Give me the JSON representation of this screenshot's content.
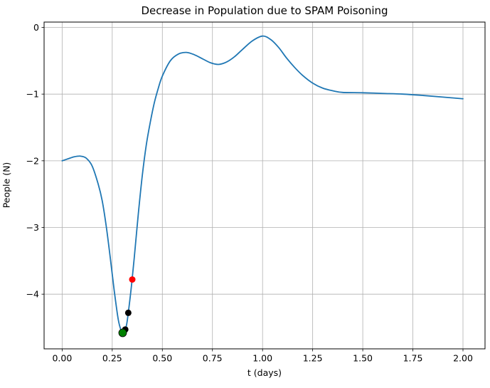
{
  "title": "Decrease in Population due to SPAM Poisoning",
  "colors": {
    "background": "#ffffff",
    "line": "#1f77b4",
    "grid": "#b0b0b0",
    "spine": "#000000",
    "tick": "#000000",
    "red_marker": "#ff0000",
    "black_marker": "#000000",
    "green_marker": "#008000"
  },
  "chart_data": {
    "type": "line",
    "title": "Decrease in Population due to SPAM Poisoning",
    "xlabel": "t (days)",
    "ylabel": "People (N)",
    "xlim": [
      -0.09,
      2.11
    ],
    "ylim": [
      -4.82,
      0.08
    ],
    "grid": true,
    "legend": false,
    "xticks": [
      0.0,
      0.25,
      0.5,
      0.75,
      1.0,
      1.25,
      1.5,
      1.75,
      2.0
    ],
    "xtick_labels": [
      "0.00",
      "0.25",
      "0.50",
      "0.75",
      "1.00",
      "1.25",
      "1.50",
      "1.75",
      "2.00"
    ],
    "yticks": [
      0,
      -1,
      -2,
      -3,
      -4
    ],
    "ytick_labels": [
      "0",
      "−1",
      "−2",
      "−3",
      "−4"
    ],
    "series": [
      {
        "name": "population-curve",
        "color": "#1f77b4",
        "line_width": 1.8,
        "x": [
          0.0,
          0.03,
          0.06,
          0.09,
          0.12,
          0.15,
          0.18,
          0.2,
          0.22,
          0.24,
          0.26,
          0.28,
          0.295,
          0.305,
          0.32,
          0.33,
          0.345,
          0.36,
          0.38,
          0.4,
          0.42,
          0.44,
          0.46,
          0.48,
          0.5,
          0.54,
          0.58,
          0.62,
          0.66,
          0.7,
          0.74,
          0.78,
          0.82,
          0.86,
          0.9,
          0.95,
          1.0,
          1.04,
          1.08,
          1.12,
          1.16,
          1.2,
          1.25,
          1.3,
          1.35,
          1.4,
          1.5,
          1.6,
          1.7,
          1.8,
          1.9,
          2.0
        ],
        "y": [
          -2.0,
          -1.97,
          -1.94,
          -1.93,
          -1.96,
          -2.08,
          -2.35,
          -2.6,
          -2.98,
          -3.45,
          -3.95,
          -4.38,
          -4.55,
          -4.58,
          -4.48,
          -4.28,
          -3.9,
          -3.45,
          -2.8,
          -2.22,
          -1.76,
          -1.42,
          -1.13,
          -0.91,
          -0.73,
          -0.5,
          -0.4,
          -0.375,
          -0.41,
          -0.47,
          -0.53,
          -0.555,
          -0.52,
          -0.44,
          -0.33,
          -0.2,
          -0.13,
          -0.18,
          -0.3,
          -0.46,
          -0.6,
          -0.72,
          -0.835,
          -0.91,
          -0.95,
          -0.975,
          -0.98,
          -0.99,
          -1.0,
          -1.02,
          -1.045,
          -1.07
        ]
      }
    ],
    "markers": [
      {
        "name": "red-point",
        "x": 0.35,
        "y": -3.78,
        "color": "#ff0000",
        "radius": 4.5,
        "edge": "none",
        "edge_width": 0
      },
      {
        "name": "black-point-upper",
        "x": 0.33,
        "y": -4.28,
        "color": "#000000",
        "radius": 4.5,
        "edge": "none",
        "edge_width": 0
      },
      {
        "name": "black-point-lower",
        "x": 0.315,
        "y": -4.53,
        "color": "#000000",
        "radius": 4.5,
        "edge": "none",
        "edge_width": 0
      },
      {
        "name": "green-point",
        "x": 0.302,
        "y": -4.58,
        "color": "#008000",
        "radius": 5.5,
        "edge": "#000000",
        "edge_width": 0.8
      }
    ]
  }
}
